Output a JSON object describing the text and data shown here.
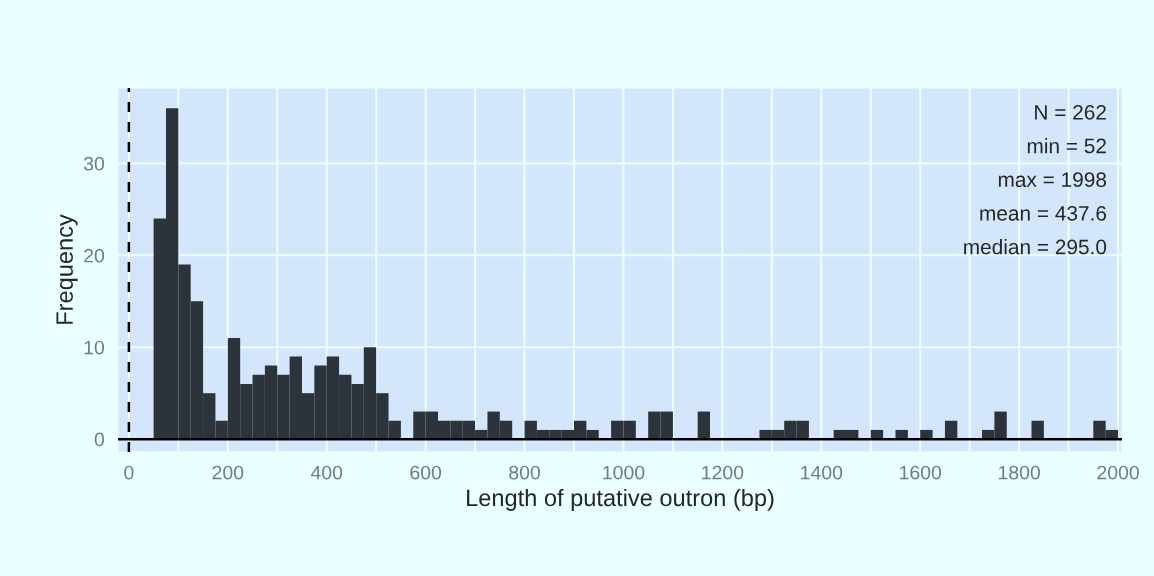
{
  "chart_data": {
    "type": "histogram",
    "xlabel": "Length of putative outron (bp)",
    "ylabel": "Frequency",
    "bins": [
      50,
      75,
      100,
      125,
      150,
      175,
      200,
      225,
      250,
      275,
      300,
      325,
      350,
      375,
      400,
      425,
      450,
      475,
      500,
      525,
      550,
      575,
      600,
      625,
      650,
      675,
      700,
      725,
      750,
      775,
      800,
      825,
      850,
      875,
      900,
      925,
      950,
      975,
      1000,
      1025,
      1050,
      1075,
      1100,
      1125,
      1150,
      1175,
      1200,
      1225,
      1250,
      1275,
      1300,
      1325,
      1350,
      1375,
      1400,
      1425,
      1450,
      1475,
      1500,
      1525,
      1550,
      1575,
      1600,
      1625,
      1650,
      1675,
      1700,
      1725,
      1750,
      1775,
      1800,
      1825,
      1850,
      1875,
      1900,
      1925,
      1950,
      1975,
      2000
    ],
    "values": [
      24,
      36,
      19,
      15,
      5,
      2,
      11,
      6,
      7,
      8,
      7,
      9,
      5,
      8,
      9,
      7,
      6,
      10,
      5,
      2,
      0,
      3,
      3,
      2,
      2,
      2,
      1,
      3,
      2,
      0,
      2,
      1,
      1,
      1,
      2,
      1,
      0,
      2,
      2,
      0,
      3,
      3,
      0,
      0,
      3,
      0,
      0,
      0,
      0,
      1,
      1,
      2,
      2,
      0,
      0,
      1,
      1,
      0,
      1,
      0,
      1,
      0,
      1,
      0,
      2,
      0,
      0,
      1,
      3,
      0,
      0,
      2,
      0,
      0,
      0,
      0,
      2,
      1
    ],
    "color": "#2d333b",
    "xlim": [
      -22,
      2008
    ],
    "ylim": [
      -1.4,
      38.2
    ],
    "xticks": [
      0,
      {
        "value": 100,
        "label": null
      },
      200,
      {
        "value": 300,
        "label": null
      },
      400,
      {
        "value": 500,
        "label": null
      },
      600,
      {
        "value": 700,
        "label": null
      },
      800,
      {
        "value": 900,
        "label": null
      },
      1000,
      {
        "value": 1100,
        "label": null
      },
      1200,
      {
        "value": 1300,
        "label": null
      },
      1400,
      {
        "value": 1500,
        "label": null
      },
      1600,
      {
        "value": 1700,
        "label": null
      },
      1800,
      {
        "value": 1900,
        "label": null
      },
      2000
    ],
    "yticks": [
      0,
      10,
      20,
      30
    ],
    "grid": true,
    "ref_lines": [
      {
        "axis": "x",
        "value": 0,
        "color": "#000000",
        "line_style": "dashed"
      },
      {
        "axis": "y",
        "value": 0,
        "color": "#000000",
        "line_style": "solid"
      }
    ],
    "annotations": [
      "N = 262",
      "min = 52",
      "max = 1998",
      "mean = 437.6",
      "median = 295.0"
    ]
  }
}
